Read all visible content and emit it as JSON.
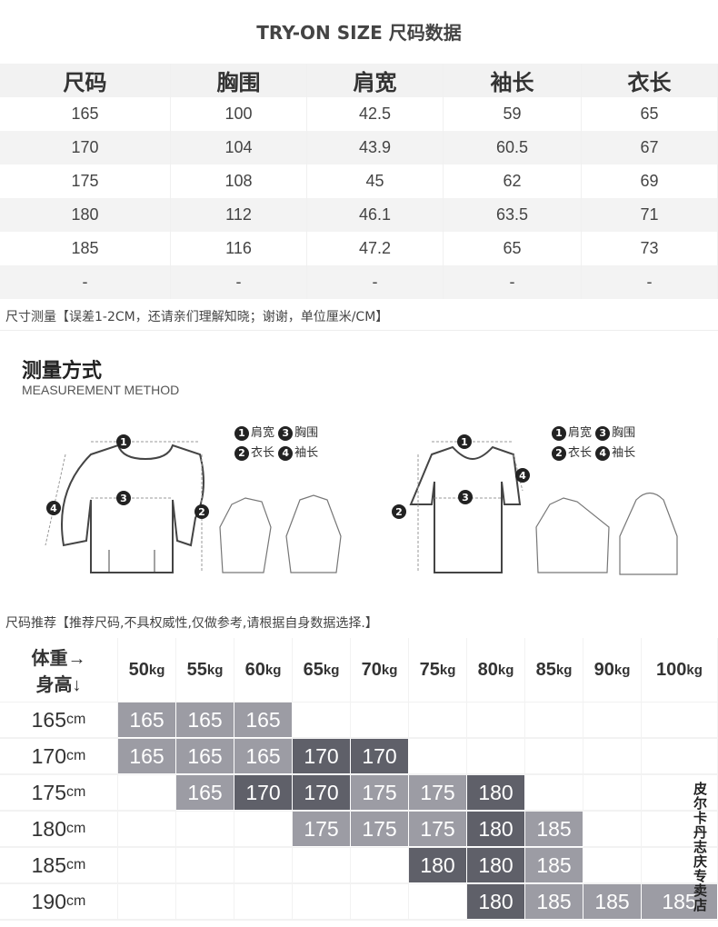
{
  "title": "TRY-ON SIZE 尺码数据",
  "size_table": {
    "headers": [
      "尺码",
      "胸围",
      "肩宽",
      "袖长",
      "衣长"
    ],
    "rows": [
      [
        "165",
        "100",
        "42.5",
        "59",
        "65"
      ],
      [
        "170",
        "104",
        "43.9",
        "60.5",
        "67"
      ],
      [
        "175",
        "108",
        "45",
        "62",
        "69"
      ],
      [
        "180",
        "112",
        "46.1",
        "63.5",
        "71"
      ],
      [
        "185",
        "116",
        "47.2",
        "65",
        "73"
      ],
      [
        "-",
        "-",
        "-",
        "-",
        "-"
      ]
    ]
  },
  "note_measure": "尺寸测量【误差1-2CM，还请亲们理解知晓；谢谢，单位厘米/CM】",
  "method": {
    "title": "测量方式",
    "subtitle": "MEASUREMENT METHOD",
    "legend": [
      {
        "n": "1",
        "label": "肩宽"
      },
      {
        "n": "3",
        "label": "胸围"
      },
      {
        "n": "2",
        "label": "衣长"
      },
      {
        "n": "4",
        "label": "袖长"
      }
    ],
    "marks": [
      "1",
      "2",
      "3",
      "4"
    ]
  },
  "note_recommend": "尺码推荐【推荐尺码,不具权威性,仅做参考,请根据自身数据选择.】",
  "recommend": {
    "corner_top": "体重→",
    "corner_bottom": "身高↓",
    "weights": [
      [
        "50",
        "kg"
      ],
      [
        "55",
        "kg"
      ],
      [
        "60",
        "kg"
      ],
      [
        "65",
        "kg"
      ],
      [
        "70",
        "kg"
      ],
      [
        "75",
        "kg"
      ],
      [
        "80",
        "kg"
      ],
      [
        "85",
        "kg"
      ],
      [
        "90",
        "kg"
      ],
      [
        "100",
        "kg"
      ]
    ],
    "rows": [
      {
        "height": [
          "165",
          "cm"
        ],
        "cells": [
          [
            "165",
            "L"
          ],
          [
            "165",
            "L"
          ],
          [
            "165",
            "L"
          ],
          null,
          null,
          null,
          null,
          null,
          null,
          null
        ]
      },
      {
        "height": [
          "170",
          "cm"
        ],
        "cells": [
          [
            "165",
            "L"
          ],
          [
            "165",
            "L"
          ],
          [
            "165",
            "L"
          ],
          [
            "170",
            "D"
          ],
          [
            "170",
            "D"
          ],
          null,
          null,
          null,
          null,
          null
        ]
      },
      {
        "height": [
          "175",
          "cm"
        ],
        "cells": [
          null,
          [
            "165",
            "L"
          ],
          [
            "170",
            "D"
          ],
          [
            "170",
            "D"
          ],
          [
            "175",
            "L"
          ],
          [
            "175",
            "L"
          ],
          [
            "180",
            "D"
          ],
          null,
          null,
          null
        ]
      },
      {
        "height": [
          "180",
          "cm"
        ],
        "cells": [
          null,
          null,
          null,
          [
            "175",
            "L"
          ],
          [
            "175",
            "L"
          ],
          [
            "175",
            "L"
          ],
          [
            "180",
            "D"
          ],
          [
            "185",
            "L"
          ],
          null,
          null
        ]
      },
      {
        "height": [
          "185",
          "cm"
        ],
        "cells": [
          null,
          null,
          null,
          null,
          null,
          [
            "180",
            "D"
          ],
          [
            "180",
            "D"
          ],
          [
            "185",
            "L"
          ],
          null,
          null
        ]
      },
      {
        "height": [
          "190",
          "cm"
        ],
        "cells": [
          null,
          null,
          null,
          null,
          null,
          null,
          [
            "180",
            "D"
          ],
          [
            "185",
            "L"
          ],
          [
            "185",
            "L"
          ],
          [
            "185",
            "L"
          ]
        ]
      }
    ],
    "colors": {
      "light": "#9c9ca4",
      "dark": "#5f6069"
    }
  },
  "watermark": "皮尔卡丹志庆专卖店"
}
